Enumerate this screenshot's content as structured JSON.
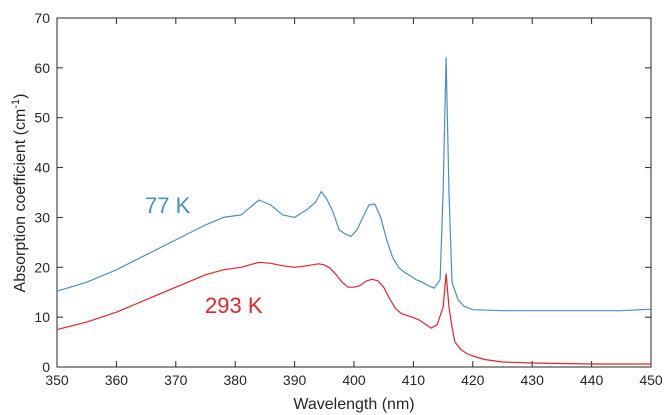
{
  "chart_data": {
    "type": "line",
    "xlabel": "Wavelength (nm)",
    "ylabel_main": "Absorption coefficient (cm",
    "ylabel_sup": "-1",
    "ylabel_close": ")",
    "xlim": [
      350,
      450
    ],
    "ylim": [
      0,
      70
    ],
    "xticks": [
      350,
      360,
      370,
      380,
      390,
      400,
      410,
      420,
      430,
      440,
      450
    ],
    "yticks": [
      0,
      10,
      20,
      30,
      40,
      50,
      60,
      70
    ],
    "grid": false,
    "series": [
      {
        "name": "77 K",
        "color": "#4a8fc0",
        "x": [
          350,
          355,
          360,
          365,
          370,
          375,
          378,
          381,
          384,
          386,
          388,
          390,
          392,
          393.5,
          394.5,
          395.5,
          396.5,
          397.5,
          398.5,
          399.5,
          400.5,
          401.5,
          402.5,
          403.5,
          404.5,
          405.5,
          406.5,
          407.5,
          408.5,
          409.5,
          410.5,
          411.5,
          412.5,
          413.5,
          414.5,
          415,
          415.5,
          416,
          416.5,
          417.5,
          418.5,
          420,
          425,
          430,
          435,
          440,
          445,
          450
        ],
        "y": [
          15.2,
          17,
          19.5,
          22.5,
          25.5,
          28.5,
          30,
          30.5,
          33.5,
          32.5,
          30.5,
          30,
          31.5,
          33,
          35.2,
          33.5,
          31,
          27.5,
          26.7,
          26.2,
          27.5,
          30,
          32.5,
          32.7,
          30,
          25.5,
          22,
          20,
          19,
          18.3,
          17.5,
          17,
          16.3,
          15.8,
          17.5,
          35,
          62,
          35,
          17,
          13.5,
          12.2,
          11.5,
          11.3,
          11.3,
          11.3,
          11.3,
          11.3,
          11.6
        ]
      },
      {
        "name": "293 K",
        "color": "#e2232a",
        "x": [
          350,
          355,
          360,
          365,
          370,
          375,
          378,
          381,
          384,
          386,
          388,
          390,
          392,
          394,
          395,
          396,
          397,
          398,
          399,
          400,
          401,
          402,
          403,
          404,
          405,
          406,
          407,
          408,
          409,
          410,
          411,
          412,
          413,
          414,
          415,
          415.5,
          416,
          416.5,
          417,
          418,
          419,
          420,
          422,
          425,
          430,
          435,
          440,
          445,
          450
        ],
        "y": [
          7.5,
          9,
          11,
          13.5,
          16,
          18.5,
          19.5,
          20,
          21,
          20.8,
          20.3,
          20,
          20.3,
          20.7,
          20.5,
          19.8,
          18.5,
          17,
          16,
          16,
          16.3,
          17.2,
          17.6,
          17.3,
          16,
          13.7,
          11.7,
          10.7,
          10.3,
          9.9,
          9.4,
          8.6,
          7.8,
          8.5,
          12,
          18.7,
          12,
          8,
          5,
          3.5,
          2.7,
          2.2,
          1.5,
          1,
          0.8,
          0.7,
          0.6,
          0.6,
          0.6
        ]
      }
    ]
  }
}
